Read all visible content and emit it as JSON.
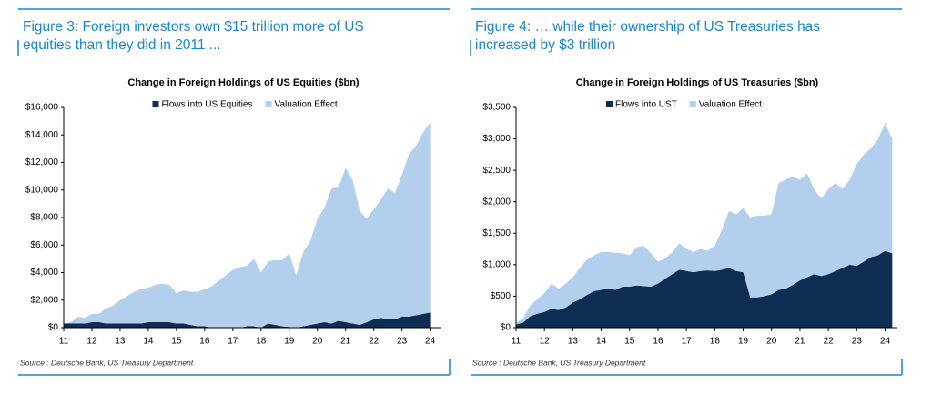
{
  "chart_data": [
    {
      "type": "stacked_area",
      "heading": [
        "Figure 3: Foreign investors own $15 trillion more of US",
        "equities than they did in 2011 ..."
      ],
      "title": "Change in Foreign Holdings of US Equities ($bn)",
      "source": "Source : Deutsche Bank, US Treasury Department",
      "x": [
        11,
        11.25,
        11.5,
        11.75,
        12,
        12.25,
        12.5,
        12.75,
        13,
        13.25,
        13.5,
        13.75,
        14,
        14.25,
        14.5,
        14.75,
        15,
        15.25,
        15.5,
        15.75,
        16,
        16.25,
        16.5,
        16.75,
        17,
        17.25,
        17.5,
        17.75,
        18,
        18.25,
        18.5,
        18.75,
        19,
        19.25,
        19.5,
        19.75,
        20,
        20.25,
        20.5,
        20.75,
        21,
        21.25,
        21.5,
        21.75,
        22,
        22.25,
        22.5,
        22.75,
        23,
        23.25,
        23.5,
        23.75,
        24
      ],
      "series": [
        {
          "name": "Flows into US Equities",
          "color": "#0d2d52",
          "values": [
            300,
            300,
            300,
            300,
            400,
            400,
            300,
            300,
            300,
            300,
            300,
            300,
            400,
            400,
            400,
            400,
            300,
            300,
            200,
            100,
            100,
            0,
            0,
            0,
            0,
            0,
            100,
            100,
            0,
            300,
            200,
            100,
            50,
            0,
            100,
            200,
            300,
            400,
            300,
            500,
            400,
            300,
            200,
            400,
            600,
            700,
            600,
            600,
            800,
            800,
            900,
            1000,
            1100
          ]
        },
        {
          "name": "Valuation Effect",
          "color": "#b3cfee",
          "values": [
            0,
            100,
            500,
            400,
            600,
            600,
            1100,
            1300,
            1700,
            2000,
            2300,
            2500,
            2500,
            2700,
            2800,
            2700,
            2200,
            2400,
            2400,
            2500,
            2700,
            3000,
            3400,
            3800,
            4200,
            4400,
            4400,
            4900,
            4000,
            4500,
            4700,
            4800,
            5350,
            3800,
            5400,
            6100,
            7600,
            8300,
            9800,
            9700,
            11200,
            10400,
            8300,
            7500,
            8000,
            8600,
            9500,
            9200,
            10300,
            11800,
            12300,
            13200,
            13800
          ]
        }
      ],
      "xlim": [
        11,
        24.4
      ],
      "xticks": [
        11,
        12,
        13,
        14,
        15,
        16,
        17,
        18,
        19,
        20,
        21,
        22,
        23,
        24
      ],
      "ylim": [
        0,
        16000
      ],
      "yticks": [
        {
          "value": 0,
          "label": "$0"
        },
        {
          "value": 2000,
          "label": "$2,000"
        },
        {
          "value": 4000,
          "label": "$4,000"
        },
        {
          "value": 6000,
          "label": "$6,000"
        },
        {
          "value": 8000,
          "label": "$8,000"
        },
        {
          "value": 10000,
          "label": "$10,000"
        },
        {
          "value": 12000,
          "label": "$12,000"
        },
        {
          "value": 14000,
          "label": "$14,000"
        },
        {
          "value": 16000,
          "label": "$16,000"
        }
      ]
    },
    {
      "type": "stacked_area",
      "heading": [
        "Figure 4: … while their ownership of US Treasuries has",
        "increased by $3 trillion"
      ],
      "title": "Change in Foreign Holdings of US Treasuries ($bn)",
      "source": "Source : Deutsche Bank, US Treasury Department",
      "x": [
        11,
        11.25,
        11.5,
        11.75,
        12,
        12.25,
        12.5,
        12.75,
        13,
        13.25,
        13.5,
        13.75,
        14,
        14.25,
        14.5,
        14.75,
        15,
        15.25,
        15.5,
        15.75,
        16,
        16.25,
        16.5,
        16.75,
        17,
        17.25,
        17.5,
        17.75,
        18,
        18.25,
        18.5,
        18.75,
        19,
        19.25,
        19.5,
        19.75,
        20,
        20.25,
        20.5,
        20.75,
        21,
        21.25,
        21.5,
        21.75,
        22,
        22.25,
        22.5,
        22.75,
        23,
        23.25,
        23.5,
        23.75,
        24,
        24.25
      ],
      "series": [
        {
          "name": "Flows into UST",
          "color": "#0d2d52",
          "values": [
            50,
            80,
            180,
            220,
            250,
            300,
            280,
            320,
            400,
            450,
            520,
            580,
            600,
            620,
            600,
            650,
            650,
            670,
            660,
            650,
            700,
            780,
            850,
            920,
            900,
            880,
            900,
            910,
            900,
            920,
            950,
            900,
            880,
            480,
            480,
            500,
            530,
            600,
            620,
            680,
            750,
            800,
            850,
            820,
            850,
            900,
            950,
            1000,
            980,
            1050,
            1120,
            1150,
            1220,
            1180
          ]
        },
        {
          "name": "Valuation Effect",
          "color": "#b3cfee",
          "values": [
            30,
            70,
            170,
            230,
            300,
            400,
            340,
            380,
            400,
            500,
            560,
            570,
            600,
            580,
            590,
            530,
            500,
            610,
            640,
            530,
            350,
            320,
            350,
            420,
            350,
            320,
            350,
            310,
            400,
            630,
            900,
            900,
            1020,
            1270,
            1300,
            1280,
            1270,
            1700,
            1730,
            1720,
            1600,
            1650,
            1350,
            1230,
            1350,
            1400,
            1250,
            1350,
            1620,
            1700,
            1730,
            1850,
            2030,
            1820
          ]
        }
      ],
      "xlim": [
        11,
        24.4
      ],
      "xticks": [
        11,
        12,
        13,
        14,
        15,
        16,
        17,
        18,
        19,
        20,
        21,
        22,
        23,
        24
      ],
      "ylim": [
        0,
        3500
      ],
      "yticks": [
        {
          "value": 0,
          "label": "$0"
        },
        {
          "value": 500,
          "label": "$500"
        },
        {
          "value": 1000,
          "label": "$1,000"
        },
        {
          "value": 1500,
          "label": "$1,500"
        },
        {
          "value": 2000,
          "label": "$2,000"
        },
        {
          "value": 2500,
          "label": "$2,500"
        },
        {
          "value": 3000,
          "label": "$3,000"
        },
        {
          "value": 3500,
          "label": "$3,500"
        }
      ]
    }
  ]
}
